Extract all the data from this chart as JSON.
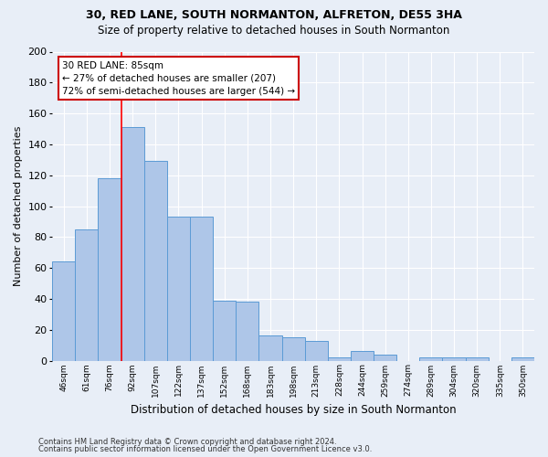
{
  "title1": "30, RED LANE, SOUTH NORMANTON, ALFRETON, DE55 3HA",
  "title2": "Size of property relative to detached houses in South Normanton",
  "xlabel": "Distribution of detached houses by size in South Normanton",
  "ylabel": "Number of detached properties",
  "categories": [
    "46sqm",
    "61sqm",
    "76sqm",
    "92sqm",
    "107sqm",
    "122sqm",
    "137sqm",
    "152sqm",
    "168sqm",
    "183sqm",
    "198sqm",
    "213sqm",
    "228sqm",
    "244sqm",
    "259sqm",
    "274sqm",
    "289sqm",
    "304sqm",
    "320sqm",
    "335sqm",
    "350sqm"
  ],
  "values": [
    64,
    85,
    118,
    151,
    129,
    93,
    93,
    39,
    38,
    16,
    15,
    13,
    2,
    6,
    4,
    0,
    2,
    2,
    2,
    0,
    2
  ],
  "bar_color": "#aec6e8",
  "bar_edge_color": "#5b9bd5",
  "ylim": [
    0,
    200
  ],
  "yticks": [
    0,
    20,
    40,
    60,
    80,
    100,
    120,
    140,
    160,
    180,
    200
  ],
  "red_line_x": 2.5,
  "annotation_line1": "30 RED LANE: 85sqm",
  "annotation_line2": "← 27% of detached houses are smaller (207)",
  "annotation_line3": "72% of semi-detached houses are larger (544) →",
  "annotation_box_color": "#ffffff",
  "annotation_box_edge": "#cc0000",
  "footer1": "Contains HM Land Registry data © Crown copyright and database right 2024.",
  "footer2": "Contains public sector information licensed under the Open Government Licence v3.0.",
  "bg_color": "#e8eef7",
  "grid_color": "#ffffff",
  "title1_fontsize": 9,
  "title2_fontsize": 8.5,
  "ylabel_fontsize": 8,
  "xlabel_fontsize": 8.5
}
